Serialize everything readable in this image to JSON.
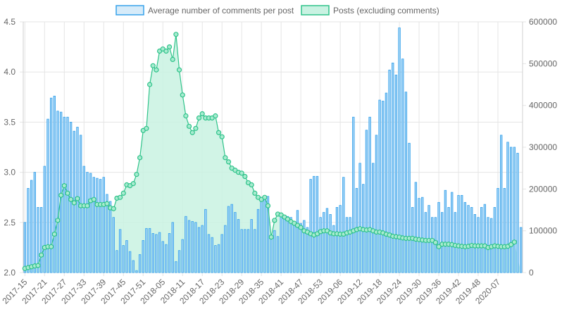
{
  "chart_data": {
    "type": "bar+line",
    "legend": {
      "position": "top",
      "entries": [
        {
          "label": "Average number of comments per post",
          "fill": "#d6ebf9",
          "stroke": "#36a2eb"
        },
        {
          "label": "Posts (excluding comments)",
          "fill": "#c9f2e2",
          "stroke": "#2fc38a"
        }
      ]
    },
    "x_tick_labels": [
      "2017-15",
      "2017-21",
      "2017-27",
      "2017-33",
      "2017-39",
      "2017-45",
      "2017-51",
      "2018-05",
      "2018-11",
      "2018-17",
      "2018-23",
      "2018-29",
      "2018-35",
      "2018-41",
      "2018-47",
      "2018-53",
      "2019-06",
      "2019-12",
      "2019-18",
      "2019-24",
      "2019-30",
      "2019-36",
      "2019-42",
      "2019-48",
      "2020-07"
    ],
    "y_left": {
      "min": 2.0,
      "max": 4.5,
      "ticks": [
        "2.0",
        "2.5",
        "3.0",
        "3.5",
        "4.0",
        "4.5"
      ]
    },
    "y_right": {
      "min": 0,
      "max": 600000,
      "ticks": [
        "0",
        "100000",
        "200000",
        "300000",
        "400000",
        "500000",
        "600000"
      ]
    },
    "grid": true,
    "colors": {
      "bar_fill": "#9dd1f5",
      "bar_stroke": "#36a2eb",
      "line": "#2fc38a",
      "area": "#c9f2e2",
      "point_fill": "#a8ebd0"
    },
    "series": [
      {
        "name": "Average number of comments per post",
        "axis": "left",
        "kind": "bar",
        "values": [
          2.5,
          2.84,
          2.92,
          3.0,
          2.65,
          2.65,
          3.06,
          3.53,
          3.74,
          3.76,
          3.61,
          3.6,
          3.55,
          3.55,
          3.5,
          3.41,
          3.45,
          3.37,
          3.06,
          3.0,
          2.99,
          2.95,
          2.94,
          2.93,
          2.95,
          2.78,
          2.71,
          2.55,
          2.22,
          2.43,
          2.27,
          2.32,
          2.21,
          2.12,
          2.02,
          2.18,
          2.32,
          2.44,
          2.44,
          2.39,
          2.38,
          2.4,
          2.31,
          2.28,
          2.39,
          2.5,
          2.11,
          2.22,
          2.33,
          2.56,
          2.52,
          2.51,
          2.5,
          2.45,
          2.47,
          2.63,
          2.38,
          2.35,
          2.27,
          2.28,
          2.38,
          2.47,
          2.66,
          2.68,
          2.6,
          2.53,
          2.43,
          2.43,
          2.43,
          2.53,
          2.43,
          2.63,
          2.75,
          2.75,
          2.76,
          2.36,
          2.42,
          2.36,
          2.58,
          2.55,
          2.56,
          2.55,
          2.48,
          2.62,
          2.49,
          2.52,
          2.45,
          2.93,
          2.96,
          2.96,
          2.55,
          2.6,
          2.64,
          2.58,
          2.47,
          2.65,
          2.67,
          2.95,
          2.55,
          2.55,
          3.55,
          2.84,
          3.09,
          2.88,
          3.42,
          3.55,
          3.09,
          3.37,
          3.72,
          3.71,
          3.79,
          4.02,
          4.09,
          3.97,
          4.44,
          4.13,
          3.8,
          3.29,
          2.65,
          2.9,
          2.74,
          2.75,
          2.6,
          2.67,
          2.55,
          2.55,
          2.7,
          2.6,
          2.82,
          2.65,
          2.8,
          2.6,
          2.77,
          2.77,
          2.7,
          2.67,
          2.65,
          2.58,
          2.55,
          2.65,
          2.68,
          2.55,
          2.54,
          2.65,
          2.84,
          3.37,
          2.84,
          3.3,
          3.25,
          3.25,
          3.19,
          2.45
        ]
      },
      {
        "name": "Posts (excluding comments)",
        "axis": "right",
        "kind": "line-area",
        "values": [
          10000,
          12000,
          14000,
          16000,
          17000,
          42000,
          60000,
          62000,
          62000,
          92000,
          125000,
          185000,
          208000,
          190000,
          175000,
          167000,
          177000,
          160000,
          160000,
          160000,
          172000,
          175000,
          163000,
          163000,
          163000,
          165000,
          155000,
          153000,
          178000,
          180000,
          190000,
          210000,
          208000,
          213000,
          235000,
          275000,
          340000,
          345000,
          450000,
          495000,
          485000,
          530000,
          535000,
          530000,
          540000,
          510000,
          570000,
          485000,
          425000,
          375000,
          350000,
          335000,
          345000,
          370000,
          380000,
          370000,
          370000,
          370000,
          375000,
          335000,
          325000,
          275000,
          265000,
          250000,
          245000,
          240000,
          238000,
          230000,
          215000,
          210000,
          190000,
          180000,
          175000,
          180000,
          160000,
          85000,
          125000,
          140000,
          138000,
          133000,
          128000,
          122000,
          118000,
          113000,
          108000,
          100000,
          97000,
          93000,
          90000,
          93000,
          98000,
          100000,
          100000,
          95000,
          93000,
          93000,
          92000,
          92000,
          95000,
          97000,
          100000,
          103000,
          105000,
          103000,
          102000,
          103000,
          100000,
          97000,
          97000,
          95000,
          92000,
          90000,
          87000,
          86000,
          85000,
          83000,
          82000,
          82000,
          82000,
          80000,
          79000,
          78000,
          77000,
          77000,
          77000,
          72000,
          62000,
          68000,
          68000,
          68000,
          67000,
          65000,
          64000,
          63000,
          62000,
          63000,
          65000,
          64000,
          64000,
          64000,
          64000,
          60000,
          62000,
          64000,
          63000,
          62000,
          62000,
          63000,
          67000,
          73000
        ]
      }
    ]
  }
}
